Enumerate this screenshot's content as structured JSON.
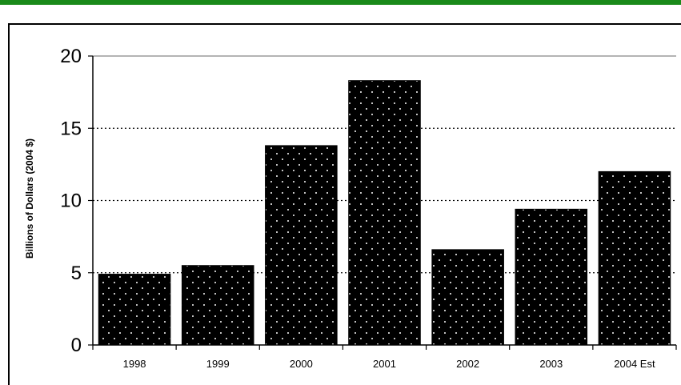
{
  "chart_data": {
    "type": "bar",
    "categories": [
      "1998",
      "1999",
      "2000",
      "2001",
      "2002",
      "2003",
      "2004 Est"
    ],
    "values": [
      4.9,
      5.5,
      13.8,
      18.3,
      6.6,
      9.4,
      12.0
    ],
    "title": "",
    "xlabel": "",
    "ylabel": "Billions of Dollars (2004 $)",
    "ylim": [
      0,
      20
    ],
    "yticks": [
      0,
      5,
      10,
      15,
      20
    ],
    "grid": "dotted horizontal at 5, 10, 15",
    "bar_color": "#000000",
    "bar_pattern": "white-dotted"
  },
  "colors": {
    "top_rule": "#1a8a1a",
    "bars": "#000000",
    "axis": "#000000"
  }
}
